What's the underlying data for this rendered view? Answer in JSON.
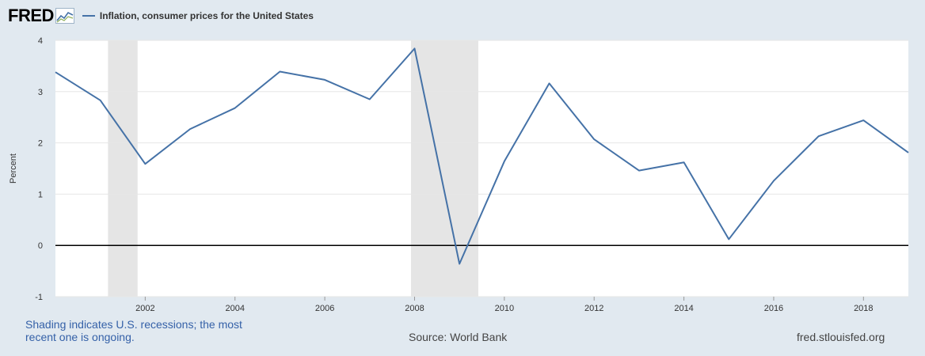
{
  "header": {
    "logo_text": "FRED",
    "logo_icon": "line-graph-icon"
  },
  "colors": {
    "background": "#e1e9f0",
    "plot_background": "#ffffff",
    "series": "#4572a7",
    "recession_shade": "#e5e5e5",
    "zero_line": "#000000",
    "grid": "#e6e6e6"
  },
  "chart_data": {
    "type": "line",
    "title": "",
    "xlabel": "",
    "ylabel": "Percent",
    "xlim": [
      2000.0,
      2019.0
    ],
    "ylim": [
      -1,
      4
    ],
    "yticks": [
      -1,
      0,
      1,
      2,
      3,
      4
    ],
    "xticks": [
      2002,
      2004,
      2006,
      2008,
      2010,
      2012,
      2014,
      2016,
      2018
    ],
    "grid": true,
    "legend": "top-left",
    "recessions": [
      [
        2001.17,
        2001.83
      ],
      [
        2007.92,
        2009.42
      ]
    ],
    "series": [
      {
        "name": "Inflation, consumer prices for the United States",
        "x": [
          2000,
          2001,
          2002,
          2003,
          2004,
          2005,
          2006,
          2007,
          2008,
          2009,
          2010,
          2011,
          2012,
          2013,
          2014,
          2015,
          2016,
          2017,
          2018,
          2019
        ],
        "values": [
          3.38,
          2.83,
          1.59,
          2.27,
          2.68,
          3.39,
          3.23,
          2.85,
          3.84,
          -0.36,
          1.64,
          3.16,
          2.07,
          1.46,
          1.62,
          0.12,
          1.26,
          2.13,
          2.44,
          1.81
        ]
      }
    ]
  },
  "footer": {
    "note": "Shading indicates U.S. recessions; the most recent one is ongoing.",
    "source": "Source: World Bank",
    "site": "fred.stlouisfed.org"
  }
}
